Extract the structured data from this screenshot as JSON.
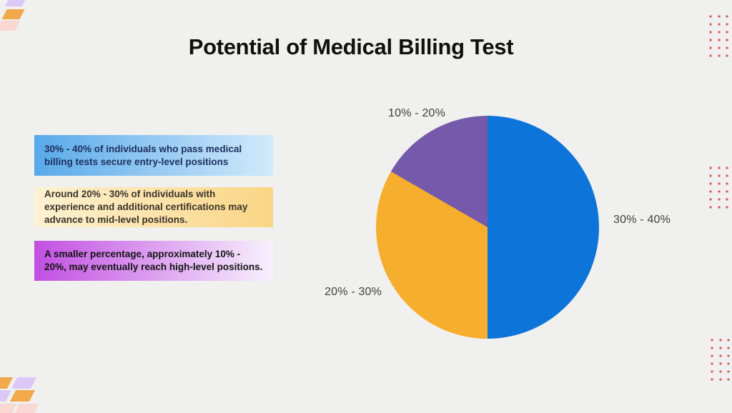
{
  "title": "Potential of Medical Billing Test",
  "cards": [
    {
      "text": "30% - 40% of individuals who pass medical billing tests secure entry-level positions",
      "gradient_from": "#58a9ea",
      "gradient_to": "#d2eafb",
      "text_color": "#1b2f5e"
    },
    {
      "text": "Around 20% - 30% of individuals with experience and additional certifications may advance to mid-level positions.",
      "gradient_from": "#fdf2d2",
      "gradient_to": "#fad584",
      "text_color": "#39332b"
    },
    {
      "text": "A smaller percentage, approximately 10% - 20%, may eventually reach high-level positions.",
      "gradient_from": "#c24fe2",
      "gradient_to": "#f7f1fd",
      "text_color": "#141414"
    }
  ],
  "chart_data": {
    "type": "pie",
    "title": "Potential of Medical Billing Test",
    "start_angle_deg": 0,
    "direction": "clockwise",
    "legend_position": "labels-outside",
    "slices": [
      {
        "label": "30% - 40%",
        "percent": 50,
        "color": "#0d74d9"
      },
      {
        "label": "20% - 30%",
        "percent": 33.33,
        "color": "#f5ae2d"
      },
      {
        "label": "10% - 20%",
        "percent": 16.67,
        "color": "#755aab"
      }
    ]
  },
  "decor": {
    "dot_color_center": "#b8444c",
    "dot_color_ring": "#ee9d9d",
    "stripe_colors": {
      "lavender": "#dcc8f7",
      "orange": "#f2a94c",
      "pink": "#f9d7d3"
    },
    "background_color": "#f0f0ee"
  }
}
